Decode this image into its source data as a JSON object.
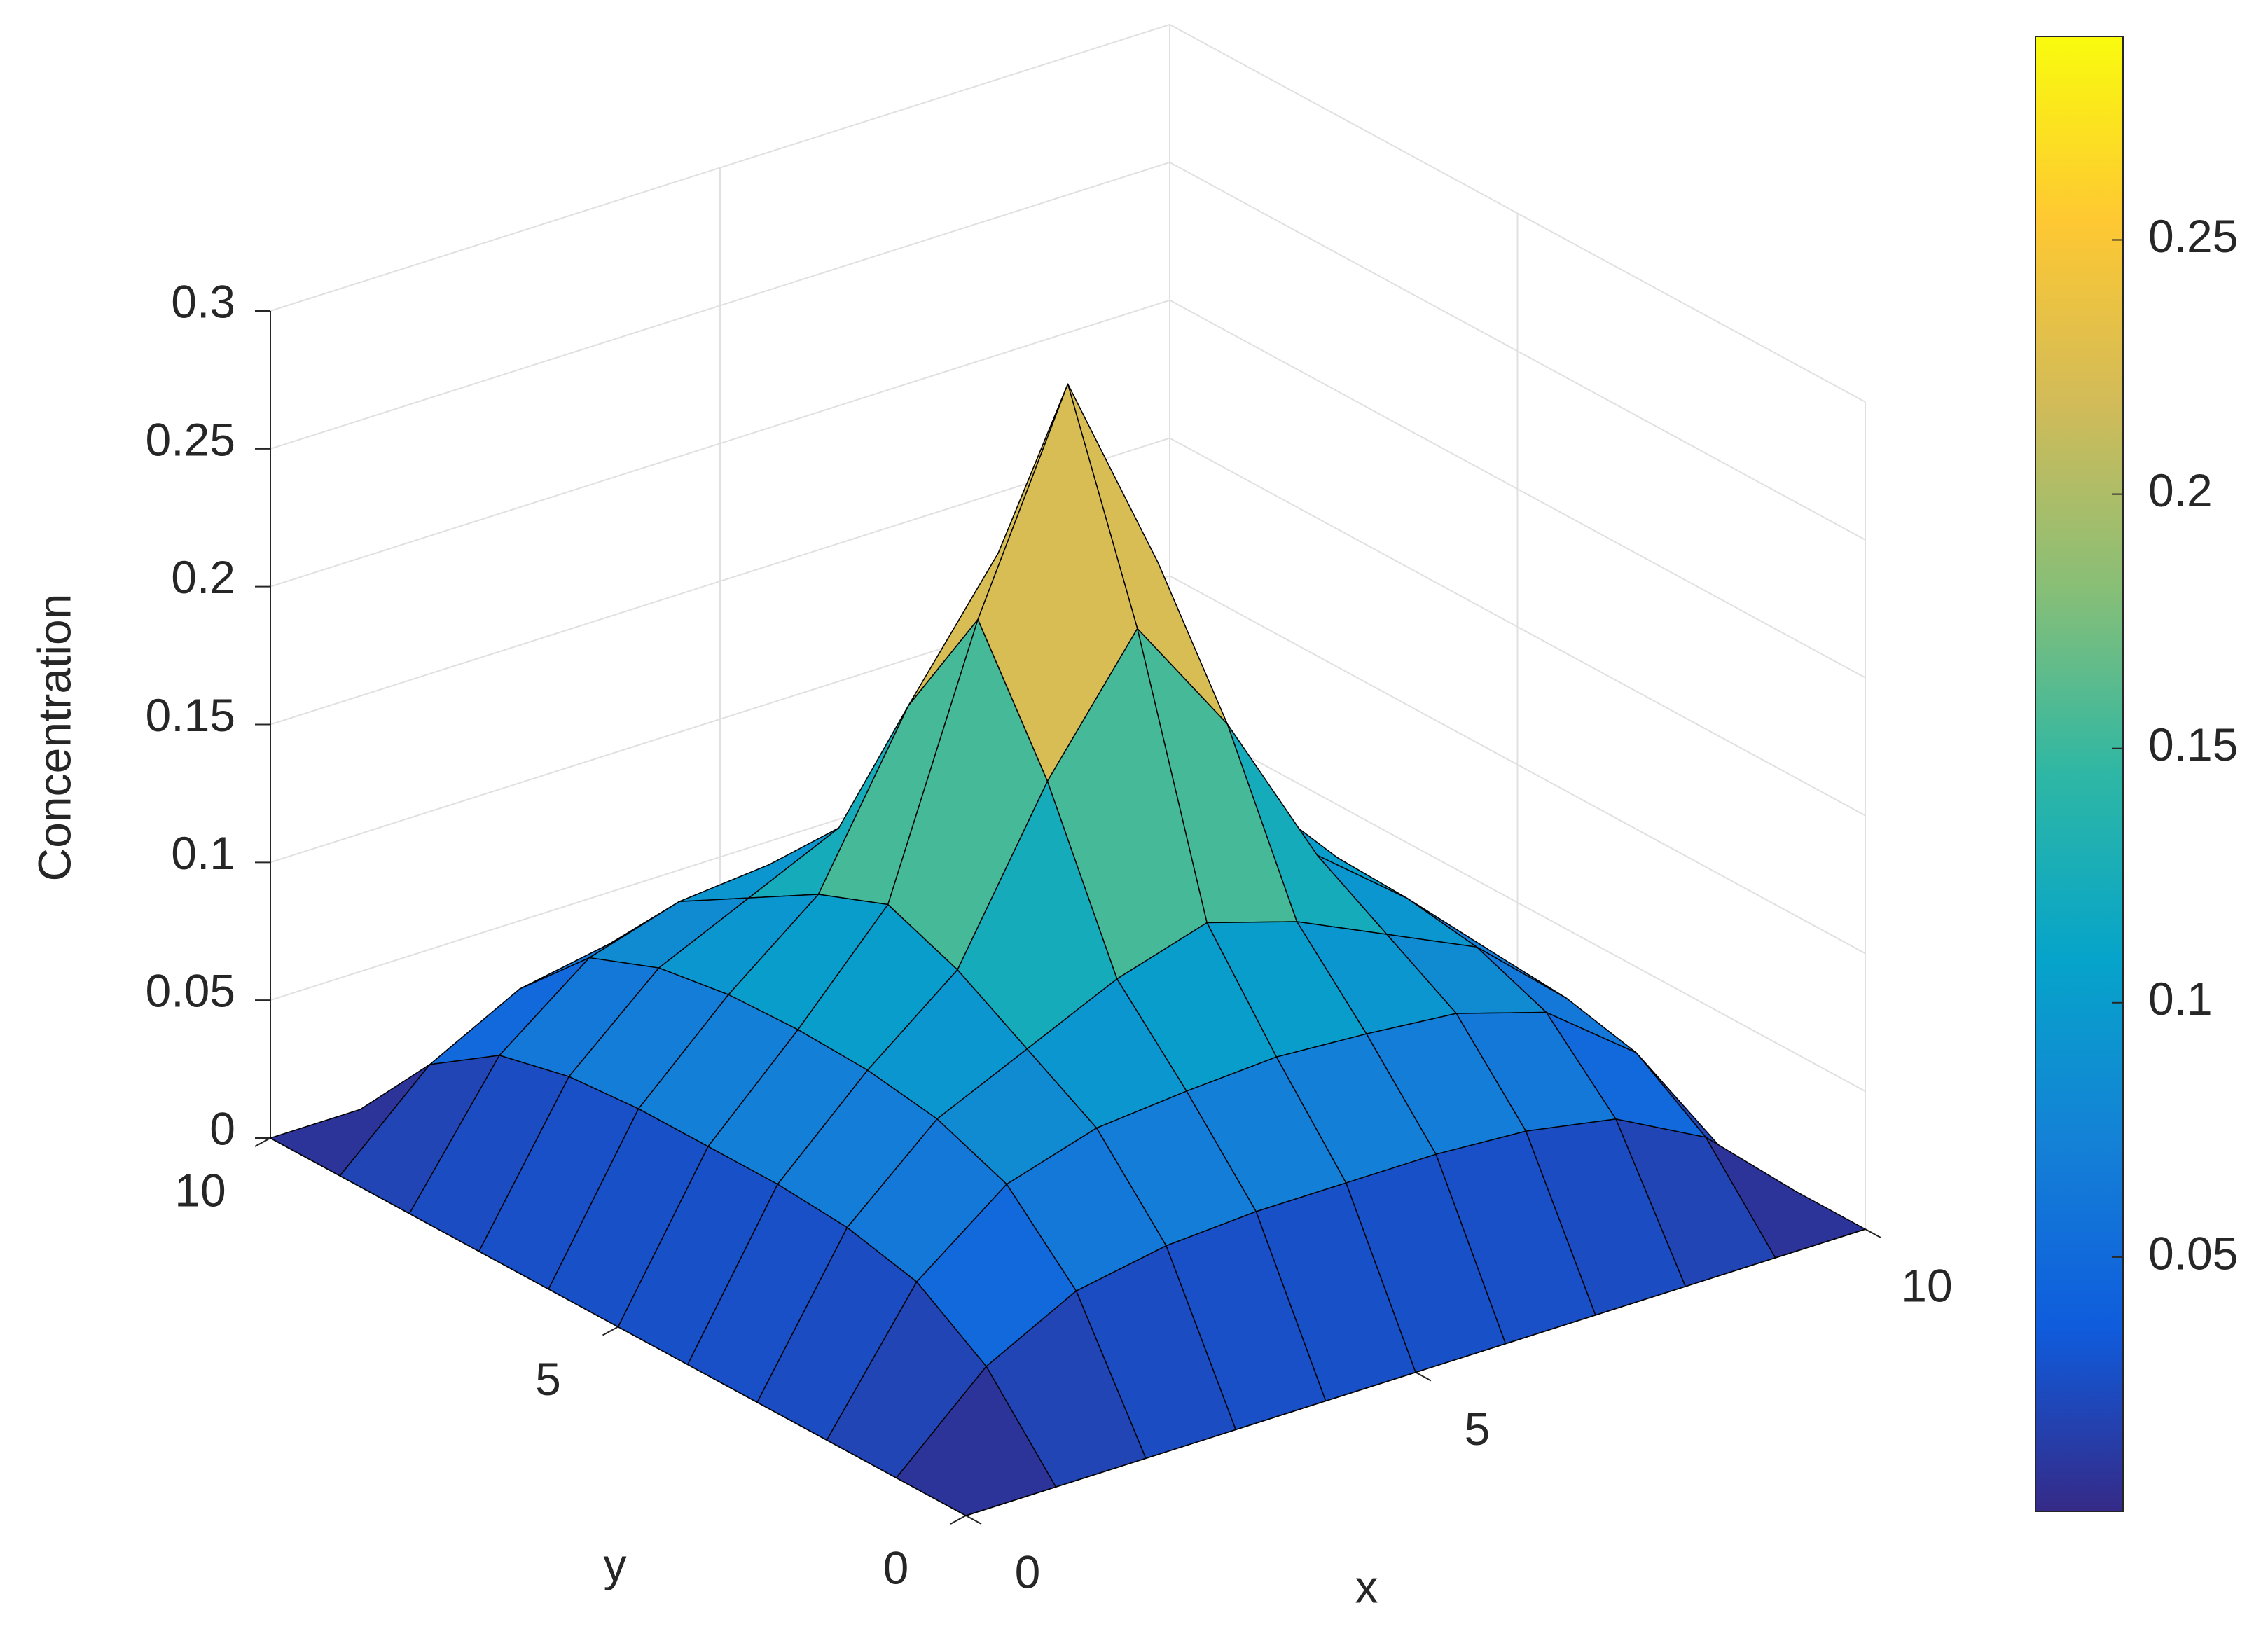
{
  "chart_data": {
    "type": "surface",
    "xlabel": "x",
    "ylabel": "y",
    "zlabel": "Concentration",
    "x": [
      0,
      1,
      2,
      3,
      4,
      5,
      6,
      7,
      8,
      9,
      10
    ],
    "y": [
      0,
      1,
      2,
      3,
      4,
      5,
      6,
      7,
      8,
      9,
      10
    ],
    "z": [
      [
        0,
        0,
        0,
        0,
        0,
        0,
        0,
        0,
        0,
        0,
        0
      ],
      [
        0,
        0.03,
        0.047,
        0.053,
        0.055,
        0.055,
        0.055,
        0.053,
        0.047,
        0.03,
        0
      ],
      [
        0,
        0.047,
        0.072,
        0.082,
        0.085,
        0.087,
        0.085,
        0.082,
        0.072,
        0.047,
        0
      ],
      [
        0,
        0.053,
        0.082,
        0.097,
        0.112,
        0.122,
        0.112,
        0.097,
        0.082,
        0.053,
        0
      ],
      [
        0,
        0.055,
        0.086,
        0.112,
        0.17,
        0.215,
        0.17,
        0.112,
        0.086,
        0.055,
        0
      ],
      [
        0,
        0.055,
        0.087,
        0.122,
        0.215,
        0.29,
        0.215,
        0.122,
        0.087,
        0.055,
        0
      ],
      [
        0,
        0.055,
        0.086,
        0.112,
        0.17,
        0.215,
        0.17,
        0.112,
        0.086,
        0.055,
        0
      ],
      [
        0,
        0.053,
        0.082,
        0.097,
        0.112,
        0.122,
        0.112,
        0.097,
        0.082,
        0.053,
        0
      ],
      [
        0,
        0.047,
        0.072,
        0.082,
        0.085,
        0.087,
        0.085,
        0.082,
        0.072,
        0.047,
        0
      ],
      [
        0,
        0.03,
        0.047,
        0.053,
        0.055,
        0.055,
        0.055,
        0.053,
        0.047,
        0.03,
        0
      ],
      [
        0,
        0,
        0,
        0,
        0,
        0,
        0,
        0,
        0,
        0,
        0
      ]
    ],
    "xlim": [
      0,
      10
    ],
    "ylim": [
      0,
      10
    ],
    "zlim": [
      0,
      0.3
    ],
    "xticks": [
      0,
      5,
      10
    ],
    "yticks": [
      0,
      5,
      10
    ],
    "zticks": [
      0,
      0.05,
      0.1,
      0.15,
      0.2,
      0.25,
      0.3
    ],
    "grid": true,
    "colormap": [
      "#352a87",
      "#0f5cdd",
      "#1481d6",
      "#06a4ca",
      "#2eb7a4",
      "#87bf77",
      "#d1bb59",
      "#fec832",
      "#f9fb0e"
    ],
    "clim": [
      0,
      0.29
    ],
    "cticks": [
      0.05,
      0.1,
      0.15,
      0.2,
      0.25
    ],
    "edge_color": "#000000"
  }
}
